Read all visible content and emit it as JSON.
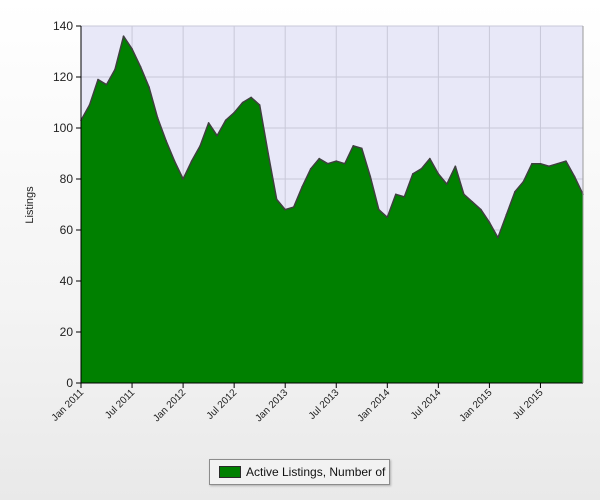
{
  "chart_data": {
    "type": "area",
    "ylabel": "Listings",
    "ylim": [
      0,
      140
    ],
    "yticks": [
      0,
      20,
      40,
      60,
      80,
      100,
      120,
      140
    ],
    "xticks": [
      "Jan 2011",
      "Jul 2011",
      "Jan 2012",
      "Jul 2012",
      "Jan 2013",
      "Jul 2013",
      "Jan 2014",
      "Jul 2014",
      "Jan 2015",
      "Jul 2015"
    ],
    "grid": true,
    "legend_position": "bottom",
    "colors": {
      "fill": "#008000",
      "line": "#404040",
      "plot_background": "#e8e8f8",
      "grid": "#c8c8d8"
    },
    "series": [
      {
        "name": "Active Listings, Number of",
        "x": [
          "2011-01",
          "2011-02",
          "2011-03",
          "2011-04",
          "2011-05",
          "2011-06",
          "2011-07",
          "2011-08",
          "2011-09",
          "2011-10",
          "2011-11",
          "2011-12",
          "2012-01",
          "2012-02",
          "2012-03",
          "2012-04",
          "2012-05",
          "2012-06",
          "2012-07",
          "2012-08",
          "2012-09",
          "2012-10",
          "2012-11",
          "2012-12",
          "2013-01",
          "2013-02",
          "2013-03",
          "2013-04",
          "2013-05",
          "2013-06",
          "2013-07",
          "2013-08",
          "2013-09",
          "2013-10",
          "2013-11",
          "2013-12",
          "2014-01",
          "2014-02",
          "2014-03",
          "2014-04",
          "2014-05",
          "2014-06",
          "2014-07",
          "2014-08",
          "2014-09",
          "2014-10",
          "2014-11",
          "2014-12",
          "2015-01",
          "2015-02",
          "2015-03",
          "2015-04",
          "2015-05",
          "2015-06",
          "2015-07",
          "2015-08",
          "2015-09",
          "2015-10",
          "2015-11",
          "2015-12"
        ],
        "values": [
          103,
          109,
          119,
          117,
          123,
          136,
          131,
          124,
          116,
          104,
          95,
          87,
          80,
          87,
          93,
          102,
          97,
          103,
          106,
          110,
          112,
          109,
          90,
          72,
          68,
          69,
          77,
          84,
          88,
          86,
          87,
          86,
          93,
          92,
          81,
          68,
          65,
          74,
          73,
          82,
          84,
          88,
          82,
          78,
          85,
          74,
          71,
          68,
          63,
          57,
          66,
          75,
          79,
          86,
          86,
          85,
          86,
          87,
          81,
          74
        ]
      }
    ]
  }
}
